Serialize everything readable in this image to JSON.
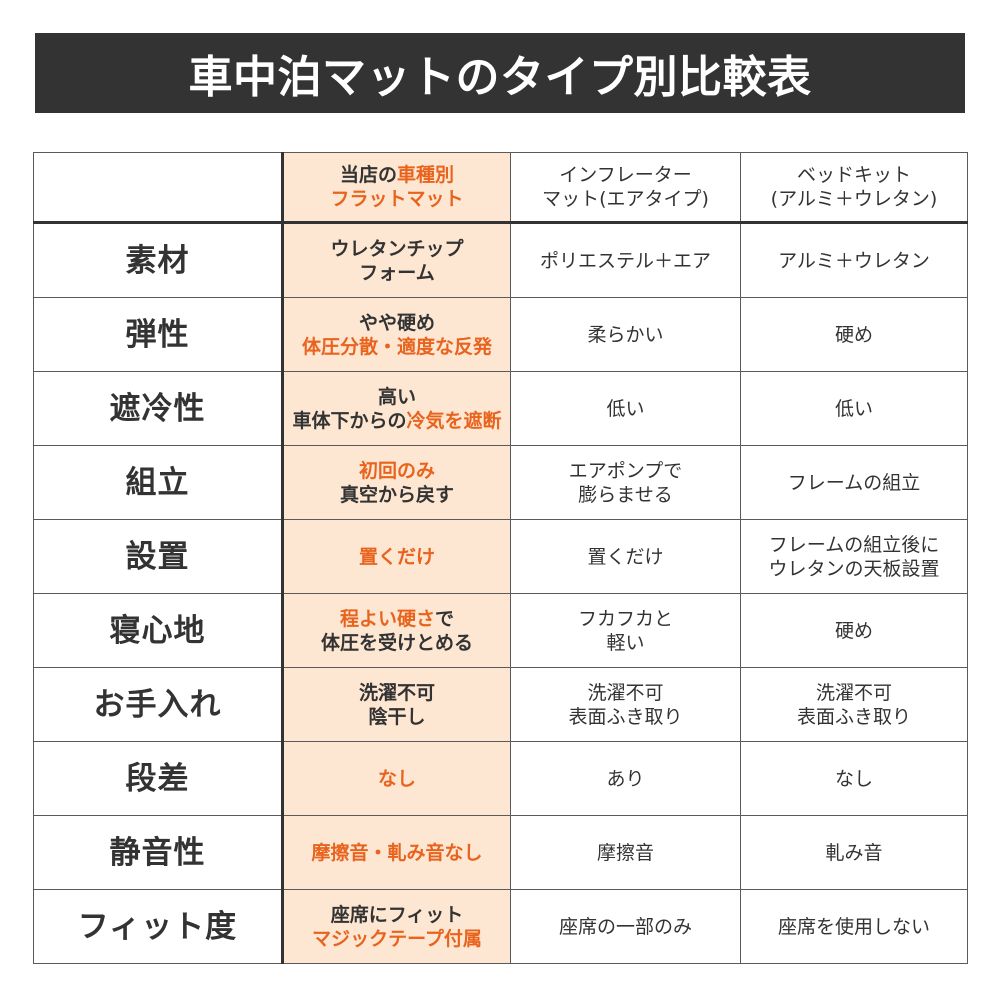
{
  "title": "車中泊マットのタイプ別比較表",
  "colors": {
    "title_bar": "#333333",
    "accent": "#e8641e",
    "store_column_bg": "#fde6d2",
    "text": "#333333"
  },
  "table": {
    "header": {
      "store_mat": [
        [
          "当店の",
          "車種別"
        ],
        [
          "フラットマット"
        ]
      ],
      "inflator_mat": [
        [
          "インフレーター"
        ],
        [
          "マット(エアタイプ)"
        ]
      ],
      "bed_kit": [
        [
          "ベッドキット"
        ],
        [
          "(アルミ＋ウレタン)"
        ]
      ]
    },
    "rows": [
      {
        "label": "素材",
        "store_mat": [
          [
            "ウレタンチップ"
          ],
          [
            "フォーム"
          ]
        ],
        "inflator_mat": [
          [
            "ポリエステル＋エア"
          ]
        ],
        "bed_kit": [
          [
            "アルミ＋ウレタン"
          ]
        ]
      },
      {
        "label": "弾性",
        "store_mat": [
          [
            "やや硬め"
          ],
          [
            "体圧分散・適度な反発"
          ]
        ],
        "inflator_mat": [
          [
            "柔らかい"
          ]
        ],
        "bed_kit": [
          [
            "硬め"
          ]
        ]
      },
      {
        "label": "遮冷性",
        "store_mat": [
          [
            "高い"
          ],
          [
            "車体下からの",
            "冷気を遮断"
          ]
        ],
        "inflator_mat": [
          [
            "低い"
          ]
        ],
        "bed_kit": [
          [
            "低い"
          ]
        ]
      },
      {
        "label": "組立",
        "store_mat": [
          [
            "初回のみ"
          ],
          [
            "真空から戻す"
          ]
        ],
        "inflator_mat": [
          [
            "エアポンプで"
          ],
          [
            "膨らませる"
          ]
        ],
        "bed_kit": [
          [
            "フレームの組立"
          ]
        ]
      },
      {
        "label": "設置",
        "store_mat": [
          [
            "置くだけ"
          ]
        ],
        "inflator_mat": [
          [
            "置くだけ"
          ]
        ],
        "bed_kit": [
          [
            "フレームの組立後に"
          ],
          [
            "ウレタンの天板設置"
          ]
        ]
      },
      {
        "label": "寝心地",
        "store_mat": [
          [
            "程よい硬さ",
            "で"
          ],
          [
            "体圧を受けとめる"
          ]
        ],
        "inflator_mat": [
          [
            "フカフカと"
          ],
          [
            "軽い"
          ]
        ],
        "bed_kit": [
          [
            "硬め"
          ]
        ]
      },
      {
        "label": "お手入れ",
        "store_mat": [
          [
            "洗濯不可"
          ],
          [
            "陰干し"
          ]
        ],
        "inflator_mat": [
          [
            "洗濯不可"
          ],
          [
            "表面ふき取り"
          ]
        ],
        "bed_kit": [
          [
            "洗濯不可"
          ],
          [
            "表面ふき取り"
          ]
        ]
      },
      {
        "label": "段差",
        "store_mat": [
          [
            "なし"
          ]
        ],
        "inflator_mat": [
          [
            "あり"
          ]
        ],
        "bed_kit": [
          [
            "なし"
          ]
        ]
      },
      {
        "label": "静音性",
        "store_mat": [
          [
            "摩擦音・軋み音なし"
          ]
        ],
        "inflator_mat": [
          [
            "摩擦音"
          ]
        ],
        "bed_kit": [
          [
            "軋み音"
          ]
        ]
      },
      {
        "label": "フィット度",
        "store_mat": [
          [
            "座席にフィット"
          ],
          [
            "マジックテープ付属"
          ]
        ],
        "inflator_mat": [
          [
            "座席の一部のみ"
          ]
        ],
        "bed_kit": [
          [
            "座席を使用しない"
          ]
        ]
      }
    ]
  }
}
